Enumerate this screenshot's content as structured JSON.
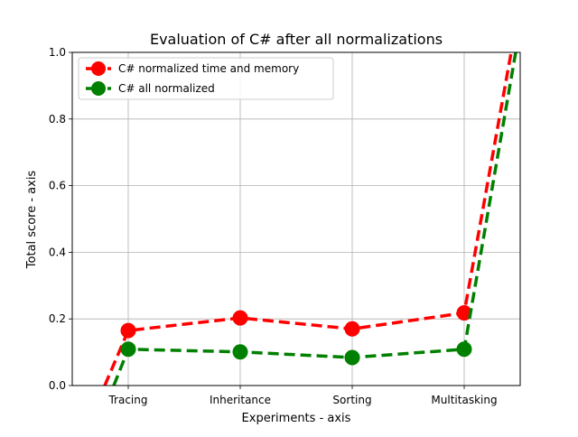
{
  "chart_data": {
    "type": "line",
    "title": "Evaluation of C# after all normalizations",
    "xlabel": "Experiments - axis",
    "ylabel": "Total score - axis",
    "categories": [
      "Tracing",
      "Inheritance",
      "Sorting",
      "Multitasking"
    ],
    "ylim": [
      0.0,
      1.0
    ],
    "yticks": [
      "0.0",
      "0.2",
      "0.4",
      "0.6",
      "0.8",
      "1.0"
    ],
    "grid": true,
    "legend_position": "top-left",
    "series": [
      {
        "name": "C# normalized time and memory",
        "color": "#ff0000",
        "values": [
          0.165,
          0.203,
          0.17,
          0.218
        ],
        "line_style": "dashed",
        "marker": "circle"
      },
      {
        "name": "C# all normalized",
        "color": "#008000",
        "values": [
          0.109,
          0.101,
          0.084,
          0.109
        ],
        "line_style": "dashed",
        "marker": "circle"
      }
    ]
  }
}
